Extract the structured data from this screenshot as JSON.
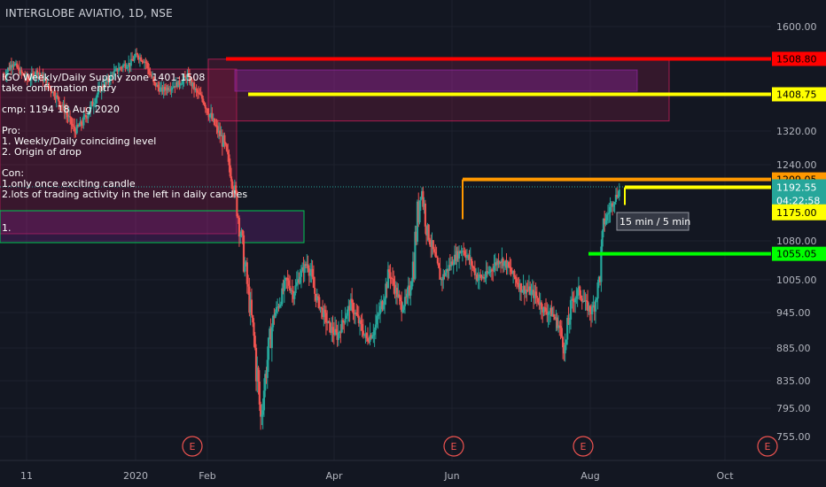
{
  "symbol_title": "INTERGLOBE AVIATIO, 1D, NSE",
  "note_lines": [
    {
      "text": "IGO  Weekly/Daily  Supply zone  1401-1508",
      "y": 88
    },
    {
      "text": "take confirmation entry",
      "y": 100
    },
    {
      "text": "cmp: 1194  18  Aug 2020",
      "y": 124
    },
    {
      "text": "Pro:",
      "y": 148
    },
    {
      "text": "1. Weekly/Daily coinciding level",
      "y": 160
    },
    {
      "text": "2. Origin of drop",
      "y": 172
    },
    {
      "text": "Con:",
      "y": 196
    },
    {
      "text": "1.only once exciting candle",
      "y": 208
    },
    {
      "text": "2.lots of trading activity in the left in daily candles",
      "y": 220
    },
    {
      "text": "1.",
      "y": 258
    }
  ],
  "timeframe_label": "15 min / 5 min",
  "chart_data": {
    "type": "candlestick",
    "title": "INTERGLOBE AVIATIO, 1D, NSE",
    "y_ticks": [
      755,
      795,
      835,
      885,
      945,
      1005,
      1080,
      1240,
      1320,
      1400,
      1600
    ],
    "y_tick_labels": [
      "755.00",
      "795.00",
      "835.00",
      "885.00",
      "945.00",
      "1005.00",
      "1080.00",
      "1240.00",
      "1320.00",
      "1400.00",
      "1600.00"
    ],
    "x_tick_labels": [
      "11",
      "2020",
      "Feb",
      "Apr",
      "Jun",
      "Aug",
      "Oct"
    ],
    "price_levels": [
      {
        "value": 1508.8,
        "label": "1508.80",
        "color": "#ff0000",
        "text_color": "#000000"
      },
      {
        "value": 1408.75,
        "label": "1408.75",
        "color": "#ffff00",
        "text_color": "#000000"
      },
      {
        "value": 1209.05,
        "label": "1209.05",
        "color": "#ff9800",
        "text_color": "#000000"
      },
      {
        "value": 1192.55,
        "label": "1192.55",
        "color": "#ffff00",
        "text_color": "#000000"
      },
      {
        "value": 1055.05,
        "label": "1055.05",
        "color": "#00ff00",
        "text_color": "#000000"
      }
    ],
    "axis_badges": [
      {
        "label": "1192.55",
        "value": 1192.55,
        "bg": "#26a69a",
        "fg": "#ffffff"
      },
      {
        "label": "04:22:58",
        "value": 1165,
        "bg": "#26a69a",
        "fg": "#ffffff"
      },
      {
        "label": "1175.00",
        "value": 1140,
        "bg": "#ffff00",
        "fg": "#000000"
      }
    ],
    "earnings_markers": [
      "E",
      "E",
      "E",
      "E"
    ],
    "supply_zone": [
      1401,
      1508
    ],
    "demand_zone_label": "1.",
    "anchors": [
      [
        0,
        1460
      ],
      [
        8,
        1500
      ],
      [
        15,
        1470
      ],
      [
        22,
        1450
      ],
      [
        30,
        1475
      ],
      [
        38,
        1440
      ],
      [
        45,
        1410
      ],
      [
        52,
        1380
      ],
      [
        58,
        1350
      ],
      [
        63,
        1320
      ],
      [
        70,
        1340
      ],
      [
        78,
        1380
      ],
      [
        85,
        1420
      ],
      [
        92,
        1445
      ],
      [
        98,
        1470
      ],
      [
        106,
        1490
      ],
      [
        112,
        1495
      ],
      [
        118,
        1520
      ],
      [
        126,
        1500
      ],
      [
        133,
        1440
      ],
      [
        140,
        1420
      ],
      [
        148,
        1430
      ],
      [
        156,
        1440
      ],
      [
        163,
        1460
      ],
      [
        170,
        1420
      ],
      [
        178,
        1390
      ],
      [
        186,
        1340
      ],
      [
        194,
        1300
      ],
      [
        201,
        1230
      ],
      [
        206,
        1170
      ],
      [
        211,
        1080
      ],
      [
        217,
        980
      ],
      [
        222,
        900
      ],
      [
        228,
        780
      ],
      [
        233,
        855
      ],
      [
        239,
        935
      ],
      [
        245,
        965
      ],
      [
        251,
        1005
      ],
      [
        257,
        980
      ],
      [
        263,
        1015
      ],
      [
        270,
        1040
      ],
      [
        276,
        980
      ],
      [
        282,
        950
      ],
      [
        289,
        920
      ],
      [
        296,
        905
      ],
      [
        302,
        935
      ],
      [
        308,
        960
      ],
      [
        316,
        925
      ],
      [
        322,
        900
      ],
      [
        329,
        915
      ],
      [
        336,
        965
      ],
      [
        342,
        1020
      ],
      [
        347,
        990
      ],
      [
        353,
        955
      ],
      [
        359,
        975
      ],
      [
        364,
        1050
      ],
      [
        370,
        1200
      ],
      [
        376,
        1100
      ],
      [
        382,
        1050
      ],
      [
        388,
        1005
      ],
      [
        395,
        1030
      ],
      [
        401,
        1050
      ],
      [
        407,
        1065
      ],
      [
        414,
        1040
      ],
      [
        420,
        1010
      ],
      [
        427,
        1010
      ],
      [
        434,
        1030
      ],
      [
        440,
        1045
      ],
      [
        446,
        1035
      ],
      [
        453,
        1010
      ],
      [
        459,
        990
      ],
      [
        466,
        985
      ],
      [
        472,
        975
      ],
      [
        479,
        950
      ],
      [
        486,
        945
      ],
      [
        493,
        920
      ],
      [
        498,
        880
      ],
      [
        503,
        960
      ],
      [
        510,
        985
      ],
      [
        516,
        960
      ],
      [
        522,
        945
      ],
      [
        528,
        1000
      ],
      [
        533,
        1120
      ],
      [
        540,
        1160
      ],
      [
        547,
        1190
      ]
    ]
  }
}
